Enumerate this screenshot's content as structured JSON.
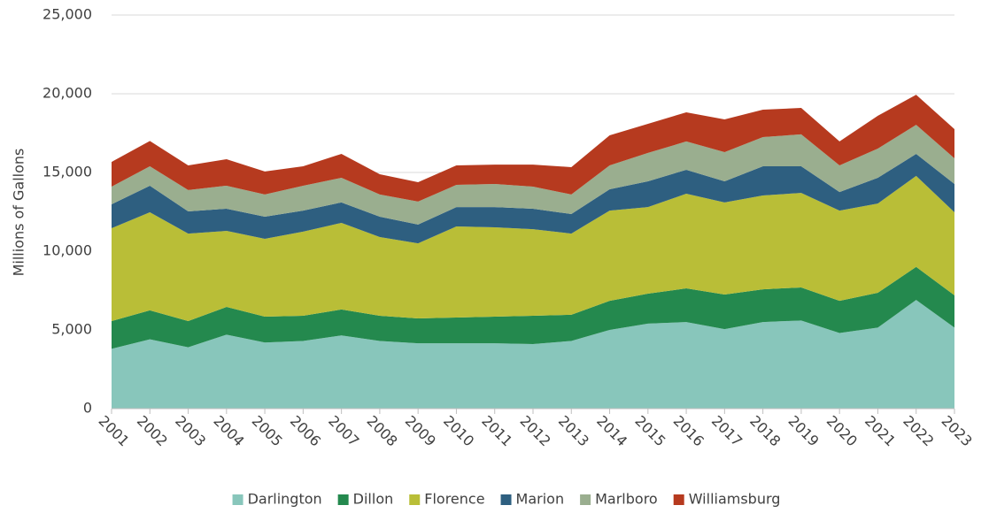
{
  "chart_data": {
    "type": "stacked-area",
    "y_label": "Millions of Gallons",
    "categories": [
      "2001",
      "2002",
      "2003",
      "2004",
      "2005",
      "2006",
      "2007",
      "2008",
      "2009",
      "2010",
      "2011",
      "2012",
      "2013",
      "2014",
      "2015",
      "2016",
      "2017",
      "2018",
      "2019",
      "2020",
      "2021",
      "2022",
      "2023"
    ],
    "series": [
      {
        "name": "Darlington",
        "color": "#88c6bb",
        "values": [
          3800,
          4400,
          3900,
          4700,
          4200,
          4300,
          4650,
          4300,
          4150,
          4150,
          4150,
          4100,
          4300,
          5000,
          5400,
          5500,
          5050,
          5500,
          5600,
          4800,
          5150,
          6900,
          5150
        ]
      },
      {
        "name": "Dillon",
        "color": "#24894e",
        "values": [
          1760,
          1840,
          1660,
          1760,
          1640,
          1600,
          1650,
          1600,
          1580,
          1640,
          1690,
          1800,
          1660,
          1850,
          1900,
          2140,
          2200,
          2080,
          2100,
          2050,
          2210,
          2100,
          2050
        ]
      },
      {
        "name": "Florence",
        "color": "#b9be37",
        "values": [
          5900,
          6230,
          5560,
          4830,
          4950,
          5340,
          5500,
          5000,
          4770,
          5780,
          5680,
          5500,
          5160,
          5730,
          5500,
          6010,
          5850,
          5960,
          6000,
          5730,
          5670,
          5780,
          5270
        ]
      },
      {
        "name": "Marion",
        "color": "#2e5f80",
        "values": [
          1520,
          1690,
          1410,
          1410,
          1400,
          1340,
          1300,
          1290,
          1190,
          1230,
          1280,
          1300,
          1240,
          1350,
          1640,
          1520,
          1340,
          1850,
          1690,
          1180,
          1630,
          1400,
          1800
        ]
      },
      {
        "name": "Marlboro",
        "color": "#9aae8f",
        "values": [
          1120,
          1230,
          1350,
          1460,
          1410,
          1580,
          1560,
          1410,
          1460,
          1410,
          1470,
          1400,
          1240,
          1520,
          1800,
          1800,
          1850,
          1860,
          2030,
          1690,
          1860,
          1850,
          1630
        ]
      },
      {
        "name": "Williamsburg",
        "color": "#b63a1f",
        "values": [
          1570,
          1610,
          1570,
          1680,
          1460,
          1230,
          1520,
          1290,
          1230,
          1240,
          1230,
          1400,
          1740,
          1910,
          1850,
          1850,
          2080,
          1740,
          1680,
          1520,
          2080,
          1910,
          1850
        ]
      }
    ],
    "ylim": [
      0,
      25000
    ],
    "yticks": [
      0,
      {
        "value": 5000,
        "label": "5,000"
      },
      {
        "value": 10000,
        "label": "10,000"
      },
      {
        "value": 15000,
        "label": "15,000"
      },
      {
        "value": 20000,
        "label": "20,000"
      },
      {
        "value": 25000,
        "label": "25,000"
      }
    ],
    "grid": true,
    "legend": "bottom"
  }
}
